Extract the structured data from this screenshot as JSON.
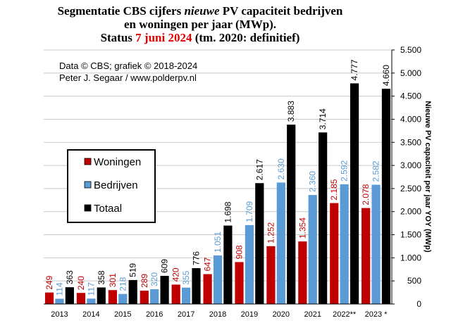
{
  "title": {
    "line1_before": "Segmentatie CBS cijfers ",
    "line1_italic": "nieuwe",
    "line1_after": " PV capaciteit bedrijven",
    "line2": "en woningen per jaar (MWp).",
    "line3_before": "Status ",
    "line3_date": "7 juni 2024",
    "line3_after": " (tm. 2020: definitief)"
  },
  "credits": {
    "line1": "Data © CBS; grafiek © 2018-2024",
    "line2": "Peter J. Segaar / www.polderpv.nl"
  },
  "colors": {
    "woningen": "#c00000",
    "bedrijven": "#5b9bd5",
    "totaal": "#000000",
    "title_accent": "#e00000",
    "label_woningen": "#c00000",
    "label_bedrijven": "#5b9bd5",
    "label_totaal": "#000000"
  },
  "chart_data": {
    "type": "bar",
    "categories": [
      "2013",
      "2014",
      "2015",
      "2016",
      "2017",
      "2018",
      "2019",
      "2020",
      "2021",
      "2022**",
      "2023 *"
    ],
    "series": [
      {
        "name": "Woningen",
        "values": [
          249,
          240,
          301,
          289,
          420,
          647,
          908,
          1252,
          1354,
          2185,
          2078
        ],
        "labels": [
          "249",
          "240",
          "301",
          "289",
          "420",
          "647",
          "908",
          "1.252",
          "1.354",
          "2.185",
          "2.078"
        ]
      },
      {
        "name": "Bedrijven",
        "values": [
          114,
          117,
          218,
          320,
          355,
          1051,
          1709,
          2630,
          2360,
          2592,
          2582
        ],
        "labels": [
          "114",
          "117",
          "218",
          "320",
          "355",
          "1.051",
          "1.709",
          "2.630",
          "2.360",
          "2.592",
          "2.582"
        ]
      },
      {
        "name": "Totaal",
        "values": [
          363,
          358,
          519,
          609,
          776,
          1698,
          2617,
          3883,
          3714,
          4777,
          4660
        ],
        "labels": [
          "363",
          "358",
          "519",
          "609",
          "776",
          "1.698",
          "2.617",
          "3.883",
          "3.714",
          "4.777",
          "4.660"
        ]
      }
    ],
    "ylabel": "Nieuwe PV capaciteit per jaar YOY (MWp)",
    "ylim": [
      0,
      5500
    ],
    "yticks": [
      0,
      500,
      1000,
      1500,
      2000,
      2500,
      3000,
      3500,
      4000,
      4500,
      5000,
      5500
    ],
    "ytick_labels": [
      "0",
      "500",
      "1.000",
      "1.500",
      "2.000",
      "2.500",
      "3.000",
      "3.500",
      "4.000",
      "4.500",
      "5.000",
      "5.500"
    ],
    "y_axis_side": "right",
    "grid": true,
    "legend_placement": "left"
  }
}
